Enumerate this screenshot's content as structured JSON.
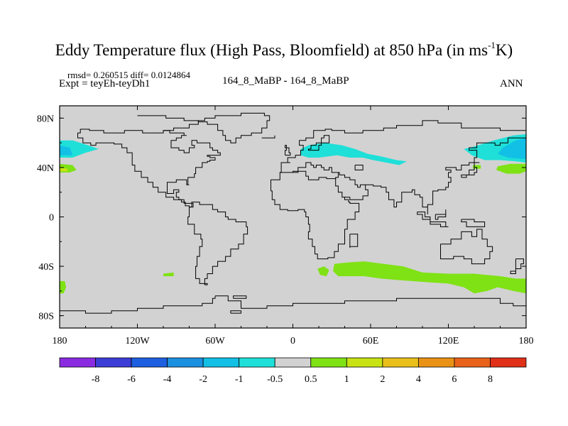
{
  "title": {
    "main": "Eddy Temperature flux (High Pass, Bloomfield) at 850 hPa (in ms",
    "sup": "-1",
    "tail": "K)"
  },
  "stats": "rmsd= 0.260515 diff= 0.0124864",
  "experiment": "Expt = teyEh-teyDh1",
  "cases": "164_8_MaBP - 164_8_MaBP",
  "season": "ANN",
  "colors": {
    "land_background": "#d2d2d2",
    "frame": "#000000",
    "coastline": "#000000"
  },
  "chart_data": {
    "type": "heatmap",
    "title": "Eddy Temperature flux (High Pass, Bloomfield) at 850 hPa (in ms-1K)",
    "projection": "cylindrical-equidistant",
    "xlim": [
      -180,
      180
    ],
    "ylim": [
      -90,
      90
    ],
    "x_ticks": [
      {
        "value": -180,
        "label": "180"
      },
      {
        "value": -120,
        "label": "120W"
      },
      {
        "value": -60,
        "label": "60W"
      },
      {
        "value": 0,
        "label": "0"
      },
      {
        "value": 60,
        "label": "60E"
      },
      {
        "value": 120,
        "label": "120E"
      },
      {
        "value": 180,
        "label": "180"
      }
    ],
    "y_ticks": [
      {
        "value": 80,
        "label": "80N"
      },
      {
        "value": 40,
        "label": "40N"
      },
      {
        "value": 0,
        "label": "0"
      },
      {
        "value": -40,
        "label": "40S"
      },
      {
        "value": -80,
        "label": "80S"
      }
    ],
    "colorbar": {
      "labels": [
        "-8",
        "-6",
        "-4",
        "-2",
        "-1",
        "-0.5",
        "0.5",
        "1",
        "2",
        "4",
        "6",
        "8"
      ],
      "colors": [
        "#8a2be2",
        "#3c3cd6",
        "#1d5fe0",
        "#1b8fe0",
        "#12c0e6",
        "#1ee0d8",
        "#d2d2d2",
        "#7fe214",
        "#c8e314",
        "#e9c01a",
        "#ea9216",
        "#e8621a",
        "#e03018"
      ]
    },
    "regions": [
      {
        "name": "north-pacific-west",
        "value_bin": "-1 to -0.5",
        "color": "#1ee0d8",
        "polygon": [
          [
            -180,
            62
          ],
          [
            -170,
            62
          ],
          [
            -158,
            58
          ],
          [
            -150,
            55
          ],
          [
            -160,
            52
          ],
          [
            -170,
            48
          ],
          [
            -180,
            48
          ]
        ]
      },
      {
        "name": "north-pacific-west-core",
        "value_bin": "-2 to -1",
        "color": "#12c0e6",
        "polygon": [
          [
            -180,
            58
          ],
          [
            -172,
            56
          ],
          [
            -170,
            50
          ],
          [
            -180,
            50
          ]
        ]
      },
      {
        "name": "north-pacific-east",
        "value_bin": "-1 to -0.5",
        "color": "#1ee0d8",
        "polygon": [
          [
            180,
            67
          ],
          [
            170,
            66
          ],
          [
            155,
            62
          ],
          [
            140,
            57
          ],
          [
            132,
            55
          ],
          [
            138,
            50
          ],
          [
            148,
            46
          ],
          [
            160,
            46
          ],
          [
            172,
            45
          ],
          [
            180,
            44
          ]
        ]
      },
      {
        "name": "north-pacific-east-core",
        "value_bin": "-2 to -1",
        "color": "#12c0e6",
        "polygon": [
          [
            180,
            64
          ],
          [
            172,
            62
          ],
          [
            162,
            56
          ],
          [
            158,
            51
          ],
          [
            166,
            48
          ],
          [
            176,
            47
          ],
          [
            180,
            47
          ]
        ]
      },
      {
        "name": "eurasia-band",
        "value_bin": "-1 to -0.5",
        "color": "#1ee0d8",
        "polygon": [
          [
            6,
            55
          ],
          [
            12,
            58
          ],
          [
            25,
            60
          ],
          [
            38,
            58
          ],
          [
            48,
            55
          ],
          [
            58,
            51
          ],
          [
            68,
            49
          ],
          [
            80,
            46
          ],
          [
            88,
            45
          ],
          [
            82,
            42
          ],
          [
            72,
            44
          ],
          [
            62,
            46
          ],
          [
            54,
            48
          ],
          [
            44,
            48
          ],
          [
            34,
            50
          ],
          [
            20,
            48
          ],
          [
            12,
            48
          ],
          [
            6,
            50
          ]
        ]
      },
      {
        "name": "pacific-subtropics-west",
        "value_bin": "0.5 to 1",
        "color": "#7fe214",
        "polygon": [
          [
            -180,
            43
          ],
          [
            -170,
            42
          ],
          [
            -167,
            38
          ],
          [
            -172,
            36
          ],
          [
            -180,
            36
          ]
        ]
      },
      {
        "name": "pacific-subtropics-west-core",
        "value_bin": "1 to 2",
        "color": "#c8e314",
        "polygon": [
          [
            -180,
            40
          ],
          [
            -174,
            39
          ],
          [
            -174,
            37
          ],
          [
            -180,
            37
          ]
        ]
      },
      {
        "name": "pacific-subtropics-east",
        "value_bin": "0.5 to 1",
        "color": "#7fe214",
        "polygon": [
          [
            180,
            43
          ],
          [
            168,
            43
          ],
          [
            158,
            41
          ],
          [
            157,
            38
          ],
          [
            165,
            35
          ],
          [
            175,
            35
          ],
          [
            180,
            37
          ]
        ]
      },
      {
        "name": "pacific-subtropics-east-dot",
        "value_bin": "0.5 to 1",
        "color": "#7fe214",
        "polygon": [
          [
            139,
            42
          ],
          [
            145,
            42
          ],
          [
            145,
            39
          ],
          [
            139,
            39
          ]
        ]
      },
      {
        "name": "south-atlantic-dot",
        "value_bin": "0.5 to 1",
        "color": "#7fe214",
        "polygon": [
          [
            -100,
            -46
          ],
          [
            -92,
            -45
          ],
          [
            -92,
            -48
          ],
          [
            -100,
            -48
          ]
        ]
      },
      {
        "name": "south-pacific-edge",
        "value_bin": "0.5 to 1",
        "color": "#7fe214",
        "polygon": [
          [
            -180,
            -52
          ],
          [
            -176,
            -52
          ],
          [
            -175,
            -57
          ],
          0,
          [
            -177,
            -62
          ],
          [
            -180,
            -62
          ]
        ]
      },
      {
        "name": "southern-ocean-small",
        "value_bin": "0.5 to 1",
        "color": "#7fe214",
        "polygon": [
          [
            19,
            -42
          ],
          [
            24,
            -40
          ],
          [
            28,
            -43
          ],
          [
            26,
            -48
          ],
          [
            21,
            -47
          ]
        ]
      },
      {
        "name": "southern-ocean-band",
        "value_bin": "0.5 to 1",
        "color": "#7fe214",
        "polygon": [
          [
            32,
            -38
          ],
          [
            42,
            -37
          ],
          [
            55,
            -36
          ],
          [
            70,
            -38
          ],
          [
            85,
            -40
          ],
          [
            100,
            -45
          ],
          [
            120,
            -46
          ],
          [
            140,
            -46
          ],
          [
            160,
            -48
          ],
          [
            172,
            -50
          ],
          [
            180,
            -50
          ],
          [
            180,
            -62
          ],
          [
            170,
            -60
          ],
          [
            158,
            -57
          ],
          [
            150,
            -60
          ],
          [
            140,
            -62
          ],
          [
            132,
            -57
          ],
          [
            120,
            -54
          ],
          [
            106,
            -53
          ],
          [
            92,
            -52
          ],
          [
            80,
            -51
          ],
          [
            68,
            -50
          ],
          [
            55,
            -48
          ],
          [
            45,
            -48
          ],
          [
            35,
            -48
          ],
          [
            31,
            -44
          ]
        ]
      }
    ]
  }
}
